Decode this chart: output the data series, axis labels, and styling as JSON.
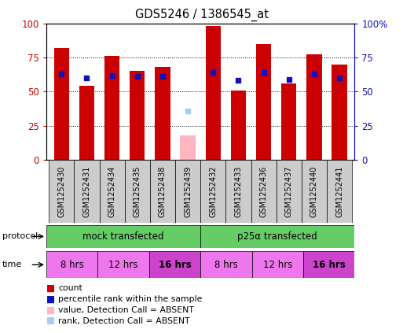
{
  "title": "GDS5246 / 1386545_at",
  "samples": [
    "GSM1252430",
    "GSM1252431",
    "GSM1252434",
    "GSM1252435",
    "GSM1252438",
    "GSM1252439",
    "GSM1252432",
    "GSM1252433",
    "GSM1252436",
    "GSM1252437",
    "GSM1252440",
    "GSM1252441"
  ],
  "red_values": [
    82,
    54,
    76,
    65,
    68,
    18,
    98,
    51,
    85,
    56,
    77,
    70
  ],
  "blue_values": [
    63,
    60,
    62,
    61,
    61,
    36,
    64,
    58,
    64,
    59,
    63,
    60
  ],
  "absent_idx": 5,
  "ylim": [
    0,
    100
  ],
  "yticks": [
    0,
    25,
    50,
    75,
    100
  ],
  "bar_color": "#CC0000",
  "blue_color": "#1111BB",
  "pink_color": "#FFB6C1",
  "light_blue_color": "#AACCEE",
  "green_color": "#66CC66",
  "magenta_light": "#EE77EE",
  "magenta_dark": "#CC44CC",
  "gray_bg": "#CCCCCC",
  "protocol_labels": [
    "mock transfected",
    "p25α transfected"
  ],
  "time_labels": [
    "8 hrs",
    "12 hrs",
    "16 hrs",
    "8 hrs",
    "12 hrs",
    "16 hrs"
  ],
  "legend_items": [
    {
      "color": "#CC0000",
      "label": "count"
    },
    {
      "color": "#1111BB",
      "label": "percentile rank within the sample"
    },
    {
      "color": "#FFB6C1",
      "label": "value, Detection Call = ABSENT"
    },
    {
      "color": "#AACCEE",
      "label": "rank, Detection Call = ABSENT"
    }
  ]
}
